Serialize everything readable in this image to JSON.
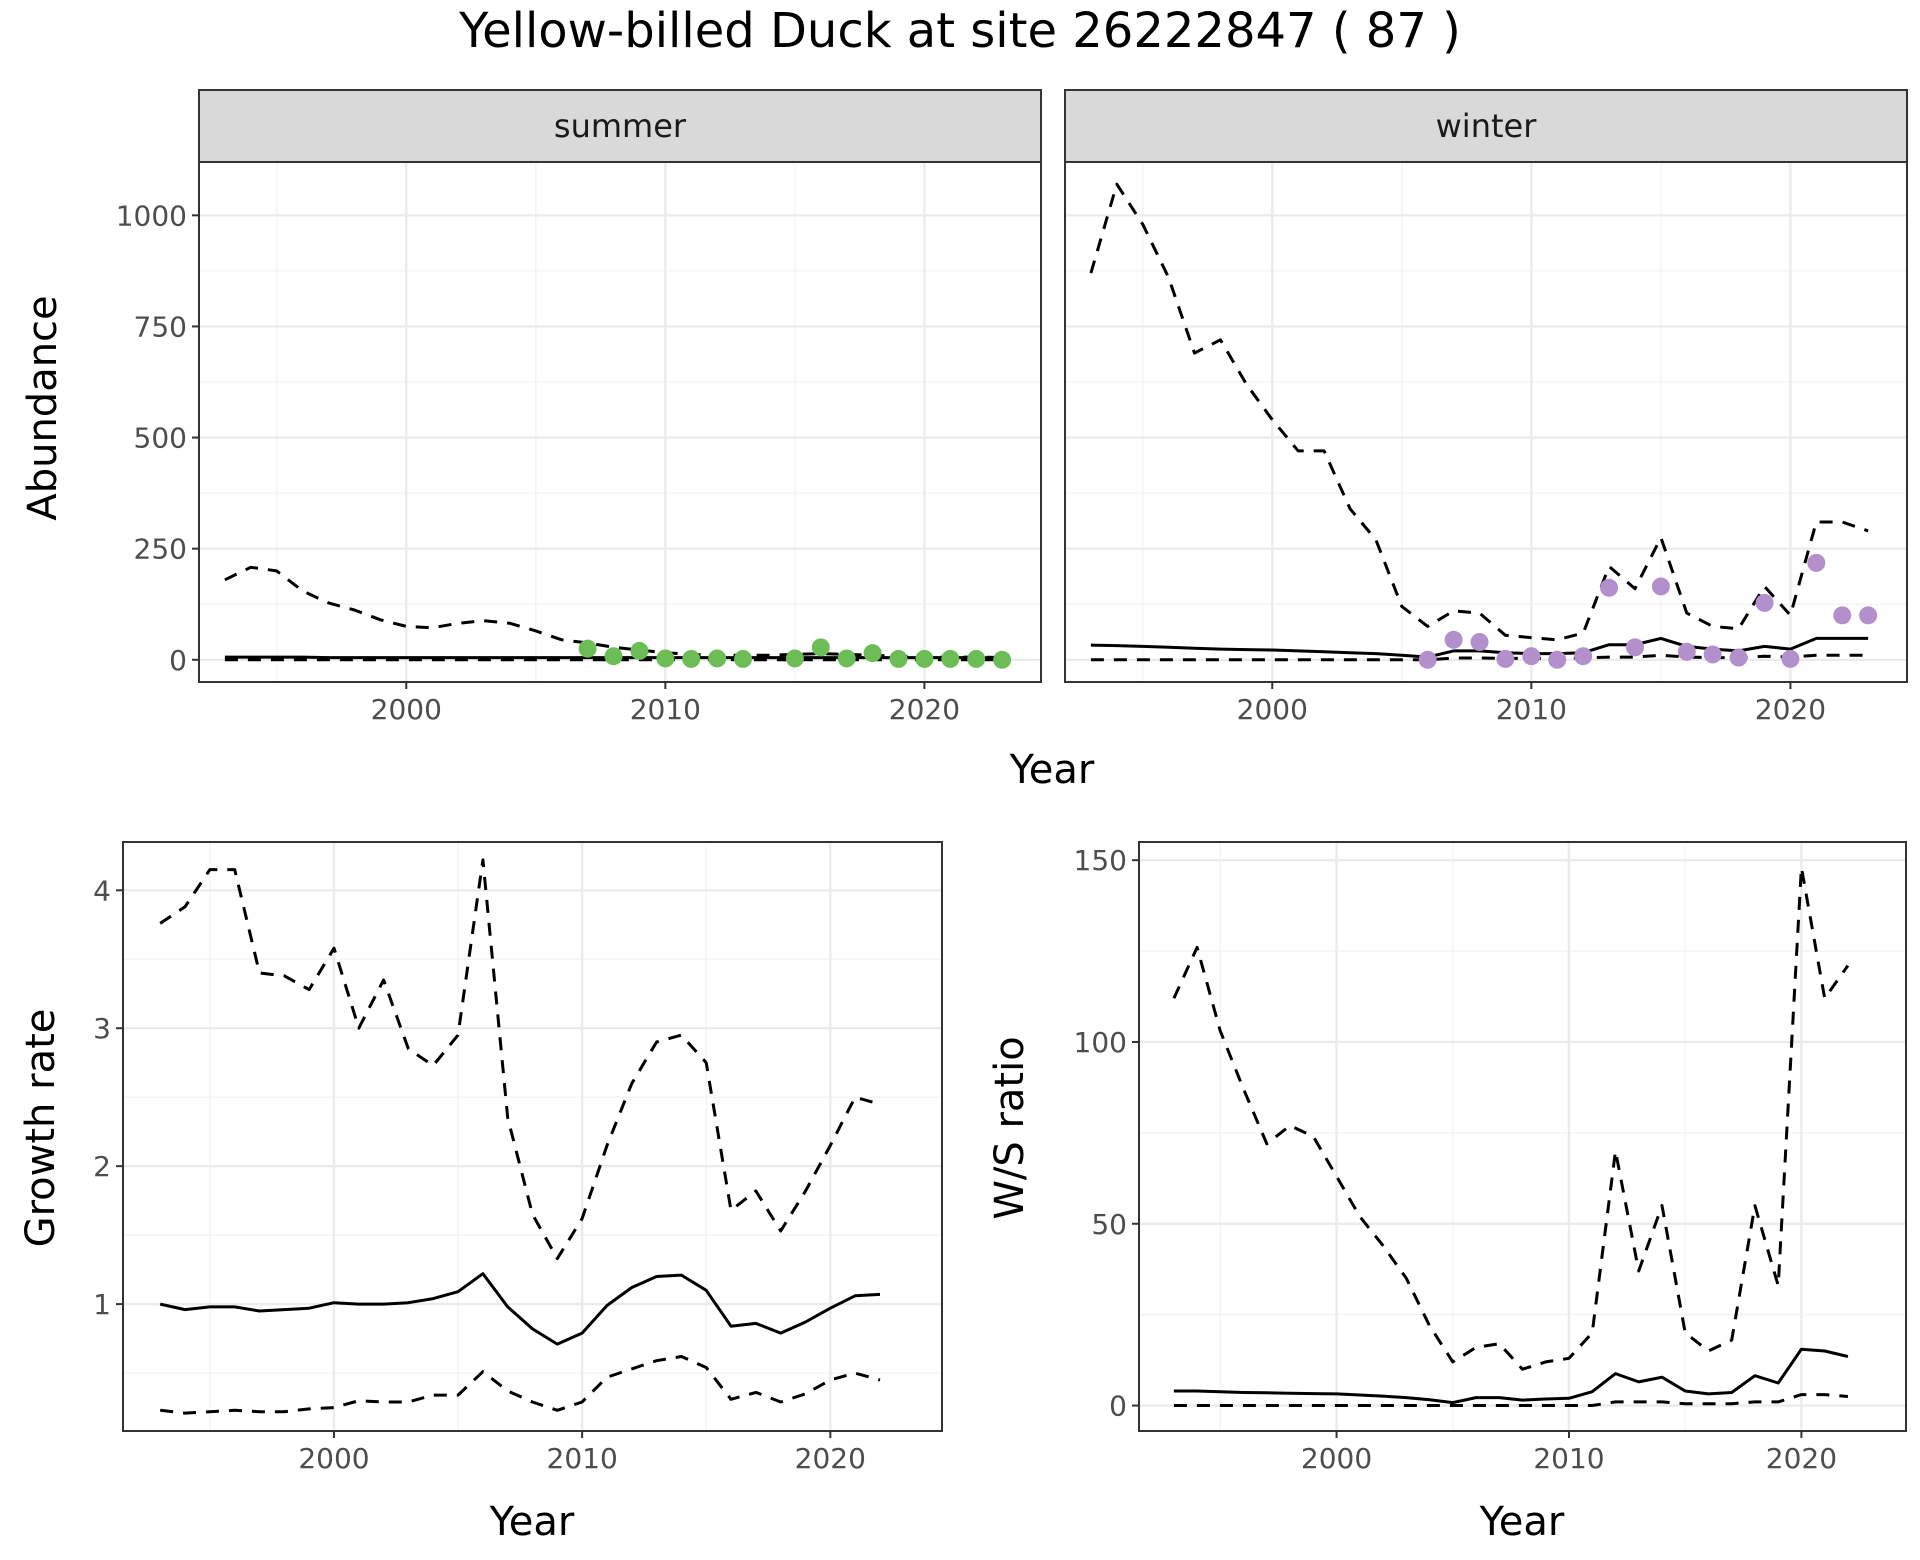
{
  "title": "Yellow-billed Duck at site 26222847 ( 87 )",
  "colors": {
    "summer_points": "#6dbd57",
    "winter_points": "#b38fcb"
  },
  "chart_data": [
    {
      "id": "abundance",
      "type": "line",
      "ylabel": "Abundance",
      "xlabel": "Year",
      "xlim": [
        1992,
        2024.5
      ],
      "ylim": [
        -50,
        1120
      ],
      "xticks": [
        2000,
        2010,
        2020
      ],
      "yticks": [
        0,
        250,
        500,
        750,
        1000
      ],
      "grid": true,
      "facets": [
        {
          "name": "summer",
          "x": [
            1993,
            1994,
            1995,
            1996,
            1997,
            1998,
            1999,
            2000,
            2001,
            2002,
            2003,
            2004,
            2005,
            2006,
            2007,
            2008,
            2009,
            2010,
            2011,
            2012,
            2013,
            2014,
            2015,
            2016,
            2017,
            2018,
            2019,
            2020,
            2021,
            2022,
            2023
          ],
          "mean": [
            6,
            6,
            6,
            6,
            5,
            5,
            5,
            5,
            5,
            5,
            5,
            5,
            5,
            5,
            5,
            5,
            5,
            5,
            5,
            5,
            5,
            5,
            5,
            5,
            5,
            5,
            5,
            5,
            5,
            5,
            4
          ],
          "upper": [
            180,
            208,
            200,
            155,
            128,
            112,
            90,
            75,
            72,
            82,
            88,
            82,
            65,
            45,
            38,
            28,
            22,
            16,
            12,
            10,
            10,
            10,
            12,
            14,
            12,
            10,
            8,
            6,
            6,
            6,
            5
          ],
          "lower": [
            0,
            0,
            0,
            0,
            0,
            0,
            0,
            0,
            0,
            0,
            0,
            0,
            0,
            0,
            0,
            0,
            0,
            0,
            0,
            0,
            0,
            0,
            0,
            0,
            0,
            0,
            0,
            0,
            0,
            0,
            0
          ],
          "obs_x": [
            2007,
            2008,
            2009,
            2010,
            2011,
            2012,
            2013,
            2015,
            2016,
            2017,
            2018,
            2019,
            2020,
            2021,
            2022,
            2023
          ],
          "obs_y": [
            25,
            8,
            20,
            3,
            2,
            3,
            2,
            3,
            28,
            3,
            15,
            2,
            2,
            2,
            2,
            0
          ]
        },
        {
          "name": "winter",
          "x": [
            1993,
            1994,
            1995,
            1996,
            1997,
            1998,
            1999,
            2000,
            2001,
            2002,
            2003,
            2004,
            2005,
            2006,
            2007,
            2008,
            2009,
            2010,
            2011,
            2012,
            2013,
            2014,
            2015,
            2016,
            2017,
            2018,
            2019,
            2020,
            2021,
            2022,
            2023
          ],
          "mean": [
            33,
            32,
            30,
            28,
            26,
            24,
            23,
            22,
            20,
            18,
            16,
            14,
            10,
            6,
            20,
            20,
            16,
            14,
            14,
            16,
            34,
            34,
            48,
            30,
            24,
            20,
            30,
            24,
            48,
            48,
            48
          ],
          "upper": [
            870,
            1070,
            980,
            860,
            690,
            720,
            620,
            540,
            470,
            470,
            340,
            270,
            120,
            75,
            110,
            105,
            55,
            50,
            45,
            60,
            210,
            160,
            275,
            105,
            75,
            70,
            165,
            100,
            310,
            310,
            290
          ],
          "lower": [
            0,
            0,
            0,
            0,
            0,
            0,
            0,
            0,
            0,
            0,
            0,
            0,
            0,
            0,
            4,
            4,
            3,
            3,
            3,
            4,
            6,
            6,
            10,
            6,
            5,
            5,
            8,
            6,
            10,
            10,
            10
          ],
          "obs_x": [
            2006,
            2007,
            2008,
            2009,
            2010,
            2011,
            2012,
            2013,
            2014,
            2015,
            2016,
            2017,
            2018,
            2019,
            2020,
            2021,
            2022,
            2023
          ],
          "obs_y": [
            0,
            45,
            40,
            2,
            8,
            0,
            8,
            162,
            28,
            165,
            18,
            12,
            5,
            128,
            2,
            218,
            100,
            100
          ]
        }
      ]
    },
    {
      "id": "growth",
      "type": "line",
      "ylabel": "Growth rate",
      "xlabel": "Year",
      "xlim": [
        1991.5,
        2024.5
      ],
      "ylim": [
        0.08,
        4.35
      ],
      "xticks": [
        2000,
        2010,
        2020
      ],
      "yticks": [
        1,
        2,
        3,
        4
      ],
      "grid": true,
      "x": [
        1993,
        1994,
        1995,
        1996,
        1997,
        1998,
        1999,
        2000,
        2001,
        2002,
        2003,
        2004,
        2005,
        2006,
        2007,
        2008,
        2009,
        2010,
        2011,
        2012,
        2013,
        2014,
        2015,
        2016,
        2017,
        2018,
        2019,
        2020,
        2021,
        2022
      ],
      "mean": [
        1.0,
        0.96,
        0.98,
        0.98,
        0.95,
        0.96,
        0.97,
        1.01,
        1.0,
        1.0,
        1.01,
        1.04,
        1.09,
        1.22,
        0.98,
        0.82,
        0.71,
        0.79,
        0.99,
        1.12,
        1.2,
        1.21,
        1.1,
        0.84,
        0.86,
        0.79,
        0.87,
        0.97,
        1.06,
        1.07
      ],
      "upper": [
        3.76,
        3.88,
        4.15,
        4.15,
        3.4,
        3.38,
        3.28,
        3.58,
        3.0,
        3.35,
        2.85,
        2.73,
        2.95,
        4.22,
        2.35,
        1.65,
        1.33,
        1.62,
        2.15,
        2.6,
        2.9,
        2.95,
        2.75,
        1.68,
        1.82,
        1.53,
        1.82,
        2.15,
        2.5,
        2.45
      ],
      "lower": [
        0.23,
        0.21,
        0.22,
        0.23,
        0.22,
        0.22,
        0.24,
        0.25,
        0.3,
        0.29,
        0.29,
        0.34,
        0.34,
        0.51,
        0.37,
        0.29,
        0.23,
        0.29,
        0.47,
        0.53,
        0.59,
        0.62,
        0.54,
        0.31,
        0.36,
        0.29,
        0.35,
        0.45,
        0.5,
        0.45
      ]
    },
    {
      "id": "ws_ratio",
      "type": "line",
      "ylabel": "W/S ratio",
      "xlabel": "Year",
      "xlim": [
        1991.5,
        2024.5
      ],
      "ylim": [
        -7,
        155
      ],
      "xticks": [
        2000,
        2010,
        2020
      ],
      "yticks": [
        0,
        50,
        100,
        150
      ],
      "grid": true,
      "x": [
        1993,
        1994,
        1995,
        1996,
        1997,
        1998,
        1999,
        2000,
        2001,
        2002,
        2003,
        2004,
        2005,
        2006,
        2007,
        2008,
        2009,
        2010,
        2011,
        2012,
        2013,
        2014,
        2015,
        2016,
        2017,
        2018,
        2019,
        2020,
        2021,
        2022
      ],
      "mean": [
        4,
        4,
        3.8,
        3.6,
        3.5,
        3.4,
        3.3,
        3.2,
        2.9,
        2.6,
        2.2,
        1.6,
        0.8,
        2.2,
        2.2,
        1.5,
        1.8,
        2.0,
        3.8,
        8.8,
        6.5,
        7.8,
        4.0,
        3.2,
        3.6,
        8.2,
        6.2,
        15.5,
        15,
        13.5
      ],
      "upper": [
        112,
        126,
        103,
        87,
        72,
        77,
        74,
        63,
        52,
        44,
        35,
        22,
        12,
        16,
        17,
        10,
        12,
        13,
        20,
        70,
        37,
        55,
        20,
        15,
        18,
        55,
        33,
        148,
        112,
        121
      ],
      "lower": [
        0,
        0,
        0,
        0,
        0,
        0,
        0,
        0,
        0,
        0,
        0,
        0,
        0,
        0,
        0,
        0,
        0,
        0,
        0,
        1,
        1,
        1,
        0.5,
        0.5,
        0.5,
        1,
        1,
        3,
        3,
        2.5
      ]
    }
  ]
}
